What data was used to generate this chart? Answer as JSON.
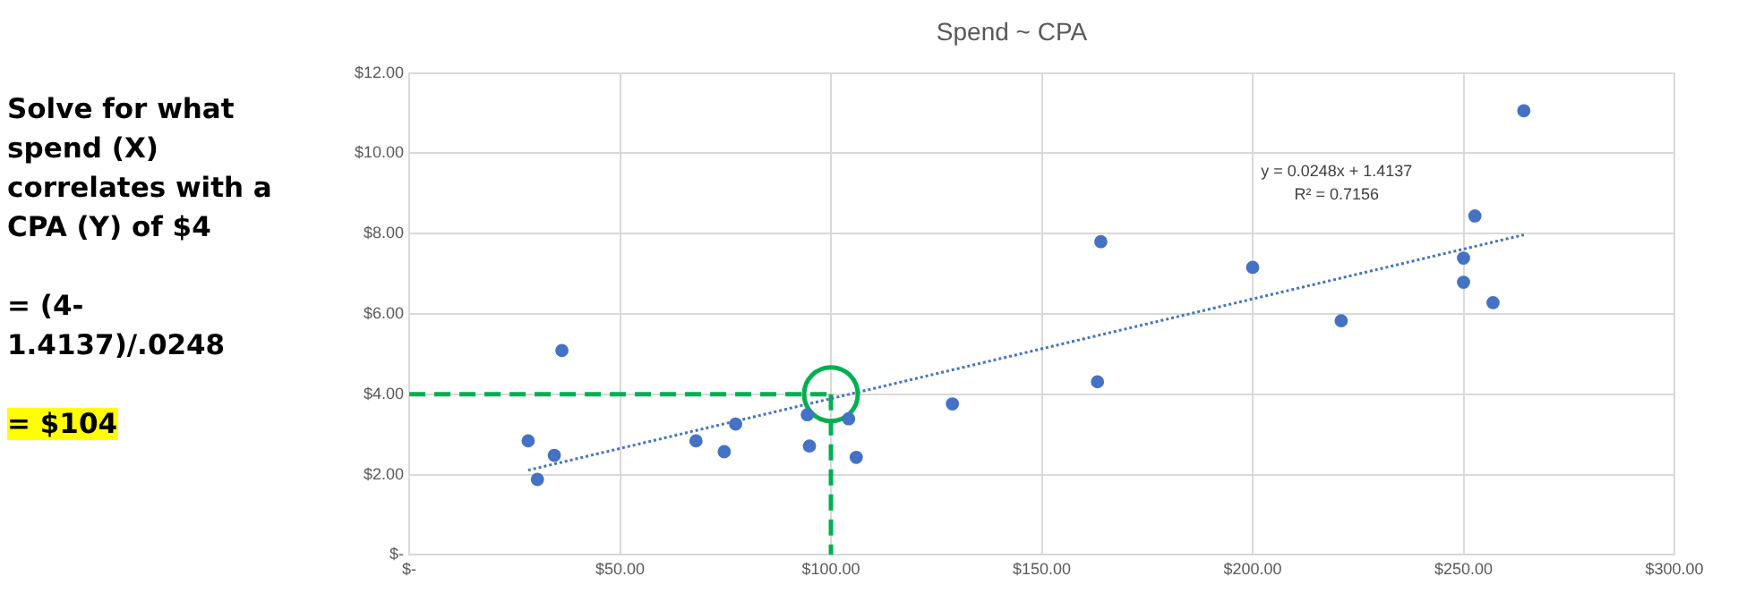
{
  "chart_data": {
    "type": "scatter",
    "title": "Spend ~ CPA",
    "xlim": [
      0,
      300
    ],
    "xticks": [
      {
        "value": 0,
        "label": "$-"
      },
      {
        "value": 50,
        "label": "$50.00"
      },
      {
        "value": 100,
        "label": "$100.00"
      },
      {
        "value": 150,
        "label": "$150.00"
      },
      {
        "value": 200,
        "label": "$200.00"
      },
      {
        "value": 250,
        "label": "$250.00"
      },
      {
        "value": 300,
        "label": "$300.00"
      }
    ],
    "ylim": [
      0,
      12
    ],
    "yticks": [
      {
        "value": 0,
        "label": "$-"
      },
      {
        "value": 2,
        "label": "$2.00"
      },
      {
        "value": 4,
        "label": "$4.00"
      },
      {
        "value": 6,
        "label": "$6.00"
      },
      {
        "value": 8,
        "label": "$8.00"
      },
      {
        "value": 10,
        "label": "$10.00"
      },
      {
        "value": 12,
        "label": "$12.00"
      }
    ],
    "grid": true,
    "legend": false,
    "series": [
      {
        "type": "scatter",
        "color": "#4472c4",
        "marker": "circle",
        "x": [
          28.2,
          30.4,
          34.4,
          36.2,
          68,
          74.7,
          77.4,
          94.4,
          94.9,
          104.2,
          106,
          128.8,
          163.2,
          164,
          200,
          221,
          250,
          250,
          252.7,
          257,
          264.3
        ],
        "values": [
          2.84,
          1.88,
          2.48,
          5.09,
          2.84,
          2.57,
          3.26,
          3.49,
          2.71,
          3.39,
          2.43,
          3.76,
          4.31,
          7.8,
          7.16,
          5.83,
          7.39,
          6.79,
          8.44,
          6.28,
          11.06
        ]
      },
      {
        "type": "line",
        "color": "#4472c4",
        "line_style": "dotted",
        "marker": "none",
        "x": [
          28.2,
          264.3
        ],
        "values": [
          2.11,
          7.97
        ]
      },
      {
        "type": "line",
        "color": "#00b050",
        "line_style": "dashed",
        "marker": "none",
        "x": [
          0,
          100
        ],
        "values": [
          4,
          4
        ]
      },
      {
        "type": "line",
        "color": "#00b050",
        "line_style": "dashed",
        "marker": "none",
        "x": [
          100,
          100
        ],
        "values": [
          4,
          0
        ]
      },
      {
        "type": "scatter",
        "color": "#00b050",
        "marker": "circle",
        "x": [
          100
        ],
        "values": [
          4
        ]
      }
    ],
    "annotations": [
      "Solve for what spend (X) correlates with a CPA (Y) of $4",
      "= (4-1.4137)/.0248",
      "= $104",
      "y = 0.0248x + 1.4137",
      "R² = 0.7156"
    ]
  }
}
